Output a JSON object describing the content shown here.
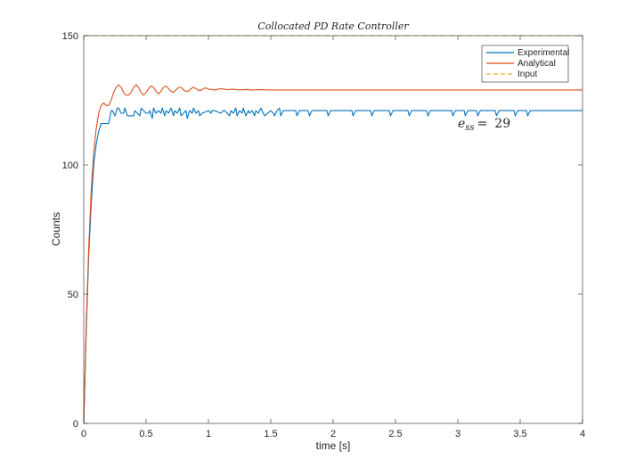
{
  "chart_data": {
    "type": "line",
    "title": "Collocated PD Rate Controller",
    "xlabel": "time [s]",
    "ylabel": "Counts",
    "xlim": [
      0,
      4
    ],
    "ylim": [
      0,
      150
    ],
    "xticks": [
      0,
      0.5,
      1,
      1.5,
      2,
      2.5,
      3,
      3.5,
      4
    ],
    "xtick_labels": [
      "0",
      "0.5",
      "1",
      "1.5",
      "2",
      "2.5",
      "3",
      "3.5",
      "4"
    ],
    "yticks": [
      0,
      50,
      100,
      150
    ],
    "ytick_labels": [
      "0",
      "50",
      "100",
      "150"
    ],
    "grid": false,
    "box": true,
    "legend_position": "top-right",
    "annotation": {
      "base": "e",
      "subscript": "ss",
      "equals": "=",
      "value": "29",
      "x": 3.0,
      "y": 115
    },
    "series": [
      {
        "name": "Experimental",
        "color": "#0072BD",
        "dash": "solid",
        "x": [
          0,
          0.02,
          0.04,
          0.06,
          0.08,
          0.1,
          0.12,
          0.14,
          0.15,
          0.2,
          0.22,
          0.23,
          0.25,
          0.27,
          0.28,
          0.3,
          0.32,
          0.33,
          0.35,
          0.4,
          0.41,
          0.43,
          0.45,
          0.46,
          0.5,
          0.52,
          0.53,
          0.55,
          0.56,
          0.58,
          0.6,
          0.62,
          0.63,
          0.65,
          0.66,
          0.68,
          0.7,
          0.72,
          0.73,
          0.75,
          0.77,
          0.78,
          0.8,
          0.82,
          0.83,
          0.85,
          0.87,
          0.88,
          0.9,
          0.92,
          0.93,
          0.95,
          1.0,
          1.02,
          1.03,
          1.05,
          1.1,
          1.12,
          1.13,
          1.15,
          1.17,
          1.18,
          1.2,
          1.22,
          1.23,
          1.25,
          1.27,
          1.28,
          1.3,
          1.32,
          1.33,
          1.35,
          1.37,
          1.38,
          1.4,
          1.42,
          1.43,
          1.45,
          1.5,
          1.52,
          1.53,
          1.55,
          1.57,
          1.58,
          1.6,
          1.7,
          1.71,
          1.73,
          1.8,
          1.81,
          1.83,
          1.95,
          1.96,
          1.98,
          2.15,
          2.16,
          2.18,
          2.3,
          2.31,
          2.33,
          2.45,
          2.46,
          2.48,
          2.6,
          2.61,
          2.63,
          2.75,
          2.76,
          2.78,
          2.95,
          2.96,
          2.98,
          3.05,
          3.06,
          3.08,
          3.15,
          3.16,
          3.18,
          3.3,
          3.31,
          3.33,
          3.45,
          3.46,
          3.48,
          3.55,
          3.56,
          3.58,
          4.0
        ],
        "y": [
          0,
          35,
          65,
          85,
          100,
          108,
          113,
          116,
          116,
          116,
          121,
          121,
          119,
          122,
          122,
          120,
          120,
          122,
          119,
          119,
          121,
          120,
          119,
          122,
          120,
          120,
          121,
          118,
          122,
          120,
          121,
          120,
          122,
          119,
          121,
          120,
          122,
          119,
          121,
          120,
          122,
          119,
          120,
          121,
          118,
          121,
          120,
          122,
          120,
          121,
          119,
          120,
          121,
          120,
          121,
          121,
          120,
          121,
          121,
          120,
          119,
          121,
          120,
          122,
          119,
          121,
          120,
          122,
          119,
          121,
          120,
          121,
          119,
          121,
          120,
          122,
          121,
          119,
          121,
          120,
          119,
          121,
          122,
          119,
          121,
          121,
          119,
          121,
          121,
          119,
          121,
          121,
          119,
          121,
          121,
          119,
          121,
          121,
          119,
          121,
          121,
          119,
          121,
          121,
          119,
          121,
          121,
          119,
          121,
          121,
          119,
          121,
          121,
          119,
          121,
          121,
          119,
          121,
          121,
          119,
          121,
          121,
          119,
          121,
          121,
          119,
          121,
          121
        ]
      },
      {
        "name": "Analytical",
        "color": "#D95319",
        "dash": "solid",
        "x": [
          0,
          0.02,
          0.04,
          0.06,
          0.08,
          0.1,
          0.12,
          0.14,
          0.16,
          0.18,
          0.2,
          0.22,
          0.24,
          0.26,
          0.28,
          0.3,
          0.32,
          0.34,
          0.36,
          0.38,
          0.4,
          0.42,
          0.44,
          0.46,
          0.48,
          0.5,
          0.52,
          0.54,
          0.56,
          0.58,
          0.6,
          0.62,
          0.64,
          0.66,
          0.68,
          0.7,
          0.72,
          0.74,
          0.76,
          0.78,
          0.8,
          0.82,
          0.84,
          0.86,
          0.88,
          0.9,
          0.92,
          0.94,
          0.96,
          0.98,
          1.0,
          1.05,
          1.1,
          1.15,
          1.2,
          1.25,
          1.3,
          1.35,
          1.4,
          1.5,
          1.6,
          1.7,
          1.8,
          2.0,
          2.5,
          3.0,
          3.5,
          4.0
        ],
        "y": [
          0,
          38,
          68,
          90,
          105,
          114,
          120,
          123,
          124,
          123,
          123,
          125,
          128,
          130,
          131,
          130,
          128,
          127,
          127,
          128,
          130,
          131,
          130,
          128,
          127,
          128,
          129.5,
          130.5,
          130,
          128.5,
          127.5,
          128.5,
          130,
          130.5,
          129.5,
          128.5,
          128,
          129,
          130,
          130,
          129,
          128.5,
          128.5,
          129.5,
          130,
          129.5,
          128.8,
          128.8,
          129.5,
          129.8,
          129.3,
          129,
          129.5,
          129.1,
          129.3,
          129,
          129.2,
          129,
          129.1,
          129,
          129,
          129,
          129,
          129,
          129,
          129,
          129,
          129
        ]
      },
      {
        "name": "Input",
        "color": "#EDB120",
        "dash": "dashed",
        "x": [
          0,
          4
        ],
        "y": [
          150,
          150
        ]
      }
    ]
  }
}
